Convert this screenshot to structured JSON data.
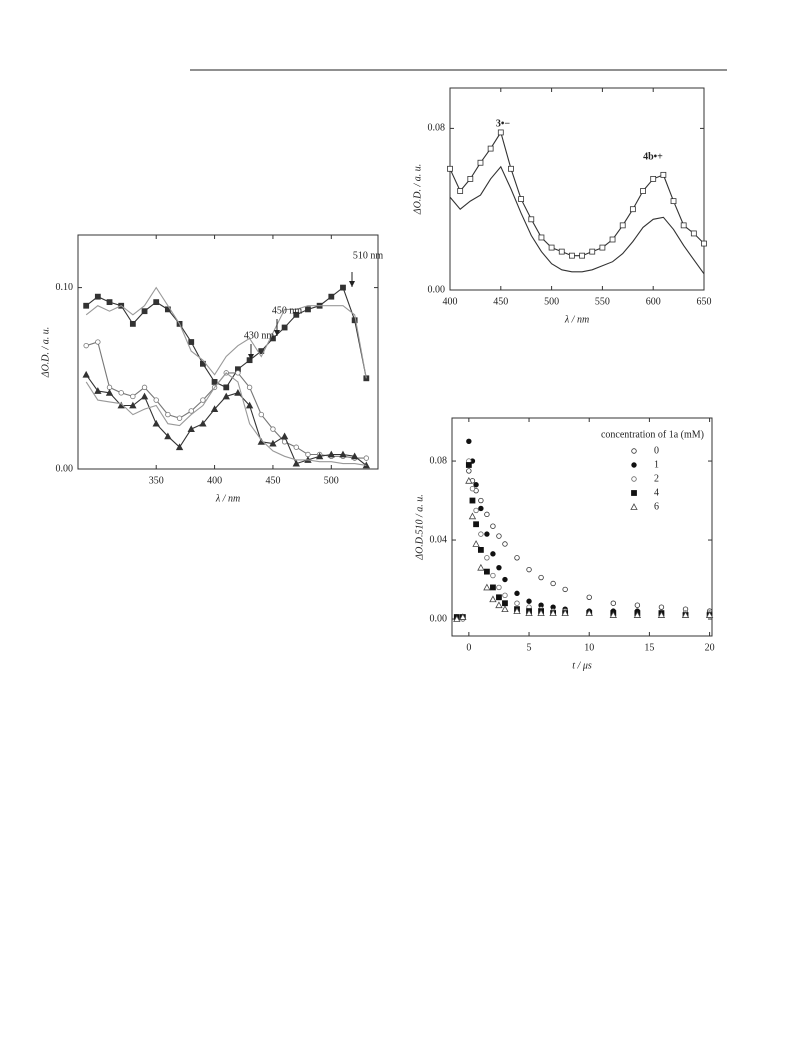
{
  "chart_data": [
    {
      "type": "line",
      "y_label": "ΔO.D. / a. u.",
      "x_label": "λ / nm",
      "x": [
        290,
        300,
        310,
        320,
        330,
        340,
        350,
        360,
        370,
        380,
        390,
        400,
        410,
        420,
        430,
        440,
        450,
        460,
        470,
        480,
        490,
        500,
        510,
        520,
        530
      ],
      "xlim": [
        283,
        540
      ],
      "ylim": [
        0,
        0.129
      ],
      "xticks": [
        350,
        400,
        450,
        500
      ],
      "yticks": [
        {
          "value": 0,
          "label": "0.00"
        },
        {
          "value": 0.1,
          "label": "0.10"
        }
      ],
      "annotations": [
        "510 nm",
        "450 nm",
        "430 nm"
      ],
      "series": [
        {
          "marker": "square-filled",
          "color": "#333333",
          "values": [
            0.09,
            0.095,
            0.092,
            0.09,
            0.08,
            0.087,
            0.092,
            0.088,
            0.08,
            0.07,
            0.058,
            0.048,
            0.045,
            0.055,
            0.06,
            0.065,
            0.072,
            0.078,
            0.085,
            0.088,
            0.09,
            0.095,
            0.1,
            0.082,
            0.05
          ]
        },
        {
          "marker": "circle-open",
          "color": "#777777",
          "values": [
            0.068,
            0.07,
            0.045,
            0.042,
            0.04,
            0.045,
            0.038,
            0.03,
            0.028,
            0.032,
            0.038,
            0.045,
            0.053,
            0.053,
            0.045,
            0.03,
            0.022,
            0.015,
            0.012,
            0.008,
            0.008,
            0.007,
            0.007,
            0.006,
            0.006
          ]
        },
        {
          "marker": "triangle-filled",
          "color": "#333333",
          "values": [
            0.052,
            0.043,
            0.042,
            0.035,
            0.035,
            0.04,
            0.025,
            0.018,
            0.012,
            0.022,
            0.025,
            0.033,
            0.04,
            0.042,
            0.035,
            0.015,
            0.014,
            0.018,
            0.003,
            0.005,
            0.007,
            0.008,
            0.008,
            0.007,
            0.002
          ]
        },
        {
          "marker": "none",
          "color": "#999999",
          "values": [
            0.085,
            0.09,
            0.087,
            0.09,
            0.085,
            0.09,
            0.1,
            0.09,
            0.08,
            0.065,
            0.06,
            0.052,
            0.062,
            0.068,
            0.072,
            0.062,
            0.075,
            0.088,
            0.088,
            0.09,
            0.09,
            0.09,
            0.09,
            0.085,
            0.05
          ]
        },
        {
          "marker": "none",
          "color": "#999999",
          "values": [
            0.048,
            0.038,
            0.037,
            0.036,
            0.03,
            0.033,
            0.035,
            0.025,
            0.024,
            0.03,
            0.035,
            0.045,
            0.053,
            0.048,
            0.025,
            0.016,
            0.01,
            0.007,
            0.005,
            0.005,
            0.004,
            0.004,
            0.003,
            0.003,
            0.002
          ]
        }
      ]
    },
    {
      "type": "line",
      "y_label": "ΔO.D. / a. u.",
      "x_label": "λ / nm",
      "x": [
        400,
        410,
        420,
        430,
        440,
        450,
        460,
        470,
        480,
        490,
        500,
        510,
        520,
        530,
        540,
        550,
        560,
        570,
        580,
        590,
        600,
        610,
        620,
        630,
        640,
        650
      ],
      "xlim": [
        400,
        650
      ],
      "ylim": [
        0,
        0.1
      ],
      "xticks": [
        400,
        450,
        500,
        550,
        600,
        650
      ],
      "yticks": [
        {
          "value": 0,
          "label": "0.00"
        },
        {
          "value": 0.08,
          "label": "0.08"
        }
      ],
      "annotations": [
        "3•−",
        "4b•+"
      ],
      "series": [
        {
          "marker": "square-open",
          "color": "#333333",
          "values": [
            0.06,
            0.049,
            0.055,
            0.063,
            0.07,
            0.078,
            0.06,
            0.045,
            0.035,
            0.026,
            0.021,
            0.019,
            0.017,
            0.017,
            0.019,
            0.021,
            0.025,
            0.032,
            0.04,
            0.049,
            0.055,
            0.057,
            0.044,
            0.032,
            0.028,
            0.023
          ]
        },
        {
          "marker": "none",
          "color": "#333333",
          "values": [
            0.046,
            0.04,
            0.044,
            0.047,
            0.055,
            0.061,
            0.05,
            0.038,
            0.027,
            0.019,
            0.013,
            0.01,
            0.009,
            0.009,
            0.01,
            0.012,
            0.014,
            0.018,
            0.024,
            0.031,
            0.035,
            0.036,
            0.03,
            0.022,
            0.015,
            0.008
          ]
        }
      ]
    },
    {
      "type": "scatter",
      "y_label": "ΔO.D.510 / a. u.",
      "x_label": "t / μs",
      "legend_title": "concentration of 1a (mM)",
      "x": [
        -1,
        -0.5,
        0,
        0.3,
        0.6,
        1,
        1.5,
        2,
        2.5,
        3,
        4,
        5,
        6,
        7,
        8,
        10,
        12,
        14,
        16,
        18,
        20
      ],
      "xlim": [
        -1.4,
        20.2
      ],
      "ylim": [
        -0.0086,
        0.1018
      ],
      "xticks": [
        0,
        5,
        10,
        15,
        20
      ],
      "yticks": [
        {
          "value": 0,
          "label": "0.00"
        },
        {
          "value": 0.04,
          "label": "0.04"
        },
        {
          "value": 0.08,
          "label": "0.08"
        }
      ],
      "series": [
        {
          "name": "0",
          "marker": "circle-open",
          "color": "#333333",
          "values": [
            0.001,
            0.001,
            0.075,
            0.07,
            0.065,
            0.06,
            0.053,
            0.047,
            0.042,
            0.038,
            0.031,
            0.025,
            0.021,
            0.018,
            0.015,
            0.011,
            0.008,
            0.007,
            0.006,
            0.005,
            0.004
          ]
        },
        {
          "name": "1",
          "marker": "circle-filled",
          "color": "#111111",
          "values": [
            0.001,
            0.001,
            0.09,
            0.08,
            0.068,
            0.056,
            0.043,
            0.033,
            0.026,
            0.02,
            0.013,
            0.009,
            0.007,
            0.006,
            0.005,
            0.004,
            0.004,
            0.004,
            0.003,
            0.003,
            0.003
          ]
        },
        {
          "name": "2",
          "marker": "circle-open",
          "color": "#666666",
          "values": [
            0.001,
            0,
            0.08,
            0.066,
            0.055,
            0.043,
            0.031,
            0.022,
            0.016,
            0.012,
            0.008,
            0.006,
            0.005,
            0.004,
            0.004,
            0.003,
            0.003,
            0.003,
            0.003,
            0.003,
            0.003
          ]
        },
        {
          "name": "4",
          "marker": "square-filled",
          "color": "#111111",
          "values": [
            0.001,
            0.001,
            0.078,
            0.06,
            0.048,
            0.035,
            0.024,
            0.016,
            0.011,
            0.008,
            0.005,
            0.004,
            0.004,
            0.003,
            0.003,
            0.003,
            0.003,
            0.003,
            0.003,
            0.002,
            0.002
          ]
        },
        {
          "name": "6",
          "marker": "triangle-open",
          "color": "#444444",
          "values": [
            0,
            0.001,
            0.07,
            0.052,
            0.038,
            0.026,
            0.016,
            0.01,
            0.007,
            0.005,
            0.004,
            0.003,
            0.003,
            0.003,
            0.003,
            0.003,
            0.002,
            0.002,
            0.002,
            0.002,
            0.002
          ]
        }
      ]
    }
  ]
}
